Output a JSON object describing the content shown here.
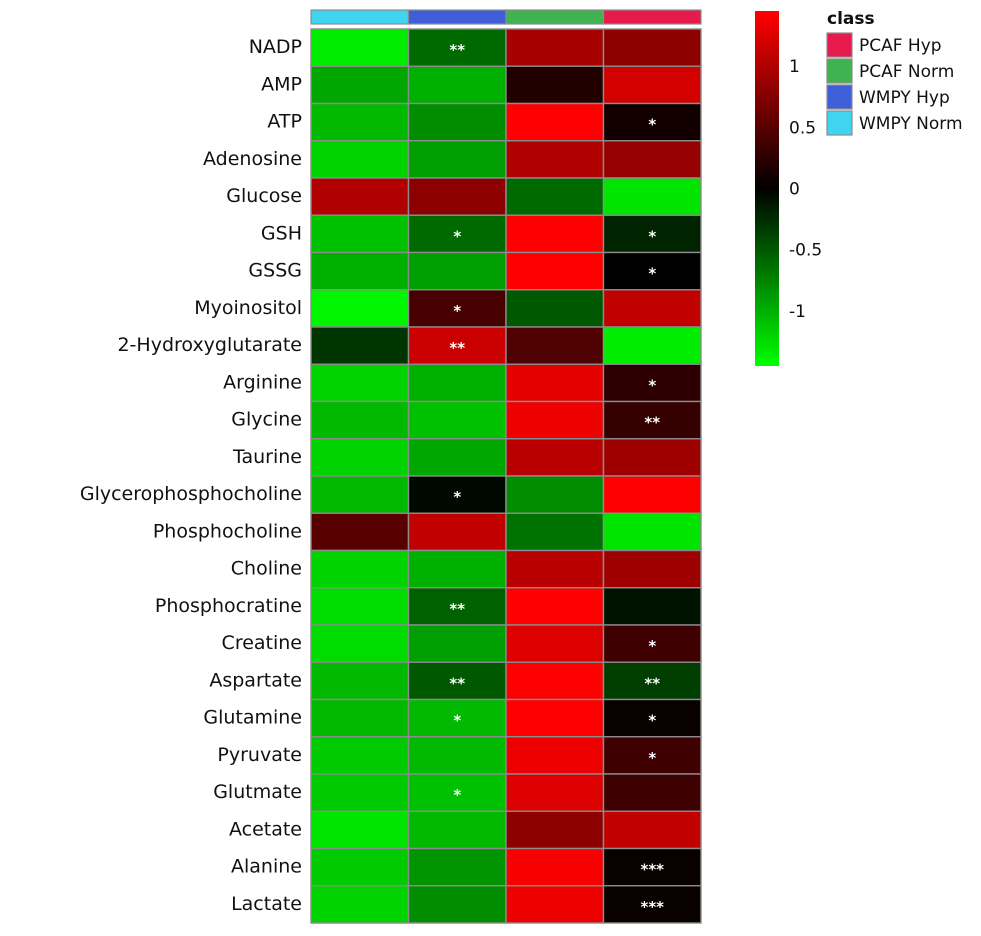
{
  "chart_data": {
    "type": "heatmap",
    "title": "",
    "columns": [
      "WMPY Norm",
      "WMPY Hyp",
      "PCAF Norm",
      "PCAF Hyp"
    ],
    "column_colors": [
      "#40d4f0",
      "#3f5fd8",
      "#3fb34f",
      "#e61a4d"
    ],
    "rows": [
      "NADP",
      "AMP",
      "ATP",
      "Adenosine",
      "Glucose",
      "GSH",
      "GSSG",
      "Myoinositol",
      "2-Hydroxyglutarate",
      "Arginine",
      "Glycine",
      "Taurine",
      "Glycerophosphocholine",
      "Phosphocholine",
      "Choline",
      "Phosphocratine",
      "Creatine",
      "Aspartate",
      "Glutamine",
      "Pyruvate",
      "Glutmate",
      "Acetate",
      "Alanine",
      "Lactate"
    ],
    "values": [
      [
        -1.35,
        -0.6,
        0.95,
        0.8
      ],
      [
        -0.95,
        -1.0,
        0.2,
        1.2
      ],
      [
        -1.05,
        -0.8,
        1.45,
        0.1
      ],
      [
        -1.2,
        -0.9,
        1.0,
        0.85
      ],
      [
        1.0,
        0.8,
        -0.6,
        -1.3
      ],
      [
        -1.1,
        -0.6,
        1.45,
        -0.2
      ],
      [
        -1.0,
        -0.9,
        1.45,
        0.0
      ],
      [
        -1.4,
        0.4,
        -0.5,
        1.1
      ],
      [
        -0.3,
        1.15,
        0.45,
        -1.35
      ],
      [
        -1.2,
        -1.0,
        1.3,
        0.25
      ],
      [
        -1.05,
        -1.1,
        1.35,
        0.3
      ],
      [
        -1.2,
        -0.95,
        1.05,
        0.9
      ],
      [
        -1.05,
        -0.05,
        -0.8,
        1.45
      ],
      [
        0.5,
        1.1,
        -0.65,
        -1.3
      ],
      [
        -1.2,
        -1.0,
        1.05,
        0.9
      ],
      [
        -1.25,
        -0.55,
        1.45,
        -0.1
      ],
      [
        -1.25,
        -0.9,
        1.25,
        0.35
      ],
      [
        -1.05,
        -0.5,
        1.5,
        -0.35
      ],
      [
        -1.05,
        -1.05,
        1.45,
        0.05
      ],
      [
        -1.15,
        -1.05,
        1.35,
        0.35
      ],
      [
        -1.15,
        -1.1,
        1.25,
        0.35
      ],
      [
        -1.3,
        -1.05,
        0.8,
        1.1
      ],
      [
        -1.15,
        -0.85,
        1.4,
        0.05
      ],
      [
        -1.2,
        -0.8,
        1.35,
        0.05
      ]
    ],
    "significance": [
      [
        "",
        "**",
        "",
        ""
      ],
      [
        "",
        "",
        "",
        ""
      ],
      [
        "",
        "",
        "",
        "*"
      ],
      [
        "",
        "",
        "",
        ""
      ],
      [
        "",
        "",
        "",
        ""
      ],
      [
        "",
        "*",
        "",
        "*"
      ],
      [
        "",
        "",
        "",
        "*"
      ],
      [
        "",
        "*",
        "",
        ""
      ],
      [
        "",
        "**",
        "",
        ""
      ],
      [
        "",
        "",
        "",
        "*"
      ],
      [
        "",
        "",
        "",
        "**"
      ],
      [
        "",
        "",
        "",
        ""
      ],
      [
        "",
        "*",
        "",
        ""
      ],
      [
        "",
        "",
        "",
        ""
      ],
      [
        "",
        "",
        "",
        ""
      ],
      [
        "",
        "**",
        "",
        ""
      ],
      [
        "",
        "",
        "",
        "*"
      ],
      [
        "",
        "**",
        "",
        "**"
      ],
      [
        "",
        "*",
        "",
        "*"
      ],
      [
        "",
        "",
        "",
        "*"
      ],
      [
        "",
        "*",
        "",
        ""
      ],
      [
        "",
        "",
        "",
        ""
      ],
      [
        "",
        "",
        "",
        "***"
      ],
      [
        "",
        "",
        "",
        "***"
      ]
    ],
    "color_scale": {
      "min": -1.45,
      "max": 1.45,
      "low_color": "#00ff00",
      "mid_color": "#000000",
      "high_color": "#ff0000",
      "ticks": [
        1,
        0.5,
        0,
        -0.5,
        -1
      ],
      "tick_labels": [
        "1",
        "0.5",
        "0",
        "-0.5",
        "-1"
      ]
    },
    "legend": {
      "title": "class",
      "items": [
        {
          "label": "PCAF Hyp",
          "color": "#e61a4d"
        },
        {
          "label": "PCAF Norm",
          "color": "#3fb34f"
        },
        {
          "label": "WMPY Hyp",
          "color": "#3f5fd8"
        },
        {
          "label": "WMPY Norm",
          "color": "#40d4f0"
        }
      ]
    }
  }
}
